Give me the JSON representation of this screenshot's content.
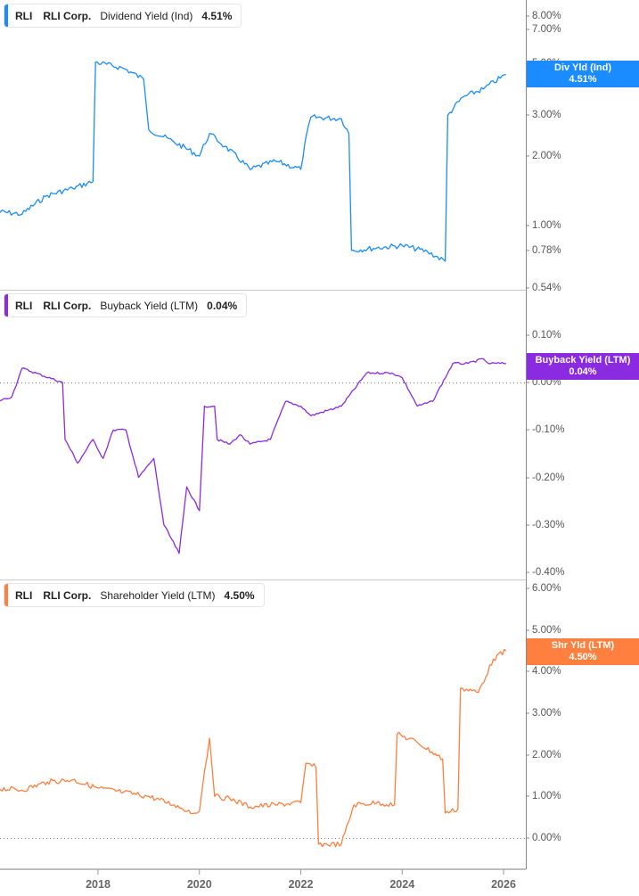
{
  "chart_data": [
    {
      "type": "line",
      "title": "RLI RLI Corp. Dividend Yield (Ind) 4.51%",
      "ticker": "RLI",
      "company": "RLI Corp.",
      "metric": "Dividend Yield (Ind)",
      "current_value": "4.51%",
      "flag_label": "Div Yld (Ind)",
      "color": "#1a8cff",
      "yscale": "log",
      "y_ticks": [
        "8.00%",
        "7.00%",
        "5.00%",
        "3.00%",
        "2.00%",
        "1.00%",
        "0.78%",
        "0.54%"
      ],
      "ylim": [
        0.54,
        9.0
      ],
      "x": [
        2016.0,
        2016.5,
        2017.0,
        2017.5,
        2017.9,
        2017.95,
        2018.5,
        2018.9,
        2019.0,
        2019.5,
        2020.0,
        2020.2,
        2020.5,
        2021.0,
        2021.5,
        2022.0,
        2022.2,
        2022.8,
        2022.95,
        2023.0,
        2023.5,
        2024.0,
        2024.5,
        2024.85,
        2024.9,
        2025.2,
        2025.6,
        2026.05
      ],
      "values": [
        1.15,
        1.12,
        1.35,
        1.45,
        1.55,
        5.1,
        4.8,
        4.3,
        2.6,
        2.3,
        2.0,
        2.5,
        2.2,
        1.75,
        1.9,
        1.75,
        2.95,
        2.9,
        2.5,
        0.78,
        0.8,
        0.82,
        0.77,
        0.7,
        3.0,
        3.6,
        3.9,
        4.51
      ]
    },
    {
      "type": "line",
      "title": "RLI RLI Corp. Buyback Yield (LTM) 0.04%",
      "ticker": "RLI",
      "company": "RLI Corp.",
      "metric": "Buyback Yield (LTM)",
      "current_value": "0.04%",
      "flag_label": "Buyback Yield (LTM)",
      "color": "#8a2be2",
      "yscale": "linear",
      "y_ticks": [
        "0.10%",
        "0.00%",
        "-0.10%",
        "-0.20%",
        "-0.30%",
        "-0.40%"
      ],
      "ylim": [
        -0.42,
        0.15
      ],
      "x": [
        2016.0,
        2016.3,
        2016.5,
        2017.3,
        2017.35,
        2017.6,
        2017.9,
        2018.1,
        2018.3,
        2018.55,
        2018.8,
        2019.1,
        2019.3,
        2019.6,
        2019.75,
        2020.0,
        2020.1,
        2020.3,
        2020.35,
        2020.6,
        2020.8,
        2021.0,
        2021.4,
        2021.7,
        2022.0,
        2022.2,
        2022.8,
        2023.3,
        2023.8,
        2024.0,
        2024.3,
        2024.6,
        2025.0,
        2025.3,
        2025.6,
        2025.7,
        2026.05
      ],
      "values": [
        -0.04,
        -0.03,
        0.03,
        0.0,
        -0.12,
        -0.17,
        -0.12,
        -0.16,
        -0.1,
        -0.1,
        -0.2,
        -0.16,
        -0.3,
        -0.36,
        -0.22,
        -0.27,
        -0.05,
        -0.05,
        -0.12,
        -0.13,
        -0.11,
        -0.13,
        -0.12,
        -0.04,
        -0.05,
        -0.07,
        -0.05,
        0.02,
        0.02,
        0.01,
        -0.05,
        -0.04,
        0.04,
        0.04,
        0.05,
        0.04,
        0.04
      ]
    },
    {
      "type": "line",
      "title": "RLI RLI Corp. Shareholder Yield (LTM) 4.50%",
      "ticker": "RLI",
      "company": "RLI Corp.",
      "metric": "Shareholder Yield (LTM)",
      "current_value": "4.50%",
      "flag_label": "Shr Yld (LTM)",
      "color": "#ff7f3f",
      "yscale": "linear",
      "y_ticks": [
        "6.00%",
        "5.00%",
        "4.00%",
        "3.00%",
        "2.00%",
        "1.00%",
        "0.00%"
      ],
      "ylim": [
        -0.3,
        6.2
      ],
      "x": [
        2016.0,
        2016.5,
        2017.0,
        2017.5,
        2018.0,
        2018.5,
        2019.0,
        2019.5,
        2019.9,
        2020.0,
        2020.1,
        2020.2,
        2020.3,
        2020.6,
        2021.0,
        2021.5,
        2022.0,
        2022.1,
        2022.3,
        2022.35,
        2022.8,
        2023.05,
        2023.5,
        2023.85,
        2023.9,
        2024.3,
        2024.8,
        2024.85,
        2025.1,
        2025.15,
        2025.5,
        2025.8,
        2026.05
      ],
      "values": [
        1.2,
        1.15,
        1.35,
        1.4,
        1.2,
        1.1,
        1.0,
        0.8,
        0.6,
        0.65,
        1.6,
        2.4,
        1.0,
        0.95,
        0.75,
        0.8,
        0.85,
        1.8,
        1.7,
        -0.15,
        -0.15,
        0.8,
        0.85,
        0.8,
        2.5,
        2.3,
        1.9,
        0.6,
        0.7,
        3.6,
        3.5,
        4.3,
        4.5
      ]
    }
  ],
  "x_axis": {
    "ticks": [
      "2018",
      "2020",
      "2022",
      "2024",
      "2026"
    ]
  },
  "panels": [
    {
      "legend": {
        "ticker": "RLI",
        "company": "RLI Corp.",
        "metric": "Dividend Yield (Ind)",
        "value": "4.51%"
      },
      "flag": {
        "label": "Div Yld (Ind)",
        "value": "4.51%"
      },
      "ticks": [
        [
          "8.00%",
          18
        ],
        [
          "7.00%",
          33
        ],
        [
          "5.00%",
          71
        ],
        [
          "3.00%",
          129
        ],
        [
          "2.00%",
          175
        ],
        [
          "1.00%",
          253
        ],
        [
          "0.78%",
          281
        ],
        [
          "0.54%",
          323
        ]
      ]
    },
    {
      "legend": {
        "ticker": "RLI",
        "company": "RLI Corp.",
        "metric": "Buyback Yield (LTM)",
        "value": "0.04%"
      },
      "flag": {
        "label": "Buyback Yield (LTM)",
        "value": "0.04%"
      },
      "ticks": [
        [
          "0.10%",
          376
        ],
        [
          "0.00%",
          429
        ],
        [
          "-0.10%",
          482
        ],
        [
          "-0.20%",
          536
        ],
        [
          "-0.30%",
          589
        ],
        [
          "-0.40%",
          642
        ]
      ]
    },
    {
      "legend": {
        "ticker": "RLI",
        "company": "RLI Corp.",
        "metric": "Shareholder Yield (LTM)",
        "value": "4.50%"
      },
      "flag": {
        "label": "Shr Yld (LTM)",
        "value": "4.50%"
      },
      "ticks": [
        [
          "6.00%",
          660
        ],
        [
          "5.00%",
          707
        ],
        [
          "4.00%",
          753
        ],
        [
          "3.00%",
          800
        ],
        [
          "2.00%",
          847
        ],
        [
          "1.00%",
          893
        ],
        [
          "0.00%",
          940
        ]
      ]
    }
  ]
}
